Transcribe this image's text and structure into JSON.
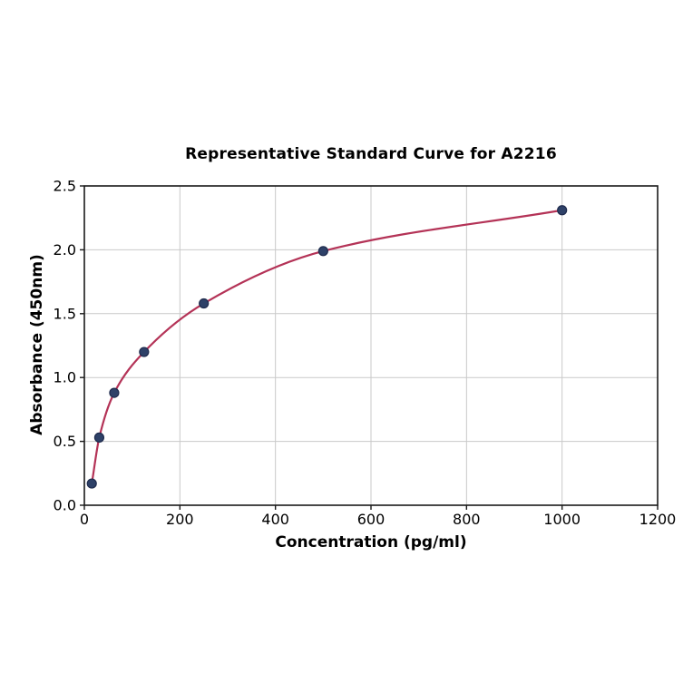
{
  "figure": {
    "background": "#ffffff"
  },
  "chart_data": {
    "type": "scatter",
    "subtype": "standard-curve-with-fit-line",
    "title": "Representative Standard Curve for A2216",
    "xlabel": "Concentration (pg/ml)",
    "ylabel": "Absorbance (450nm)",
    "xlim": [
      0,
      1200
    ],
    "ylim": [
      0.0,
      2.5
    ],
    "x_ticks": [
      0,
      200,
      400,
      600,
      800,
      1000,
      1200
    ],
    "x_tick_labels": [
      "0",
      "200",
      "400",
      "600",
      "800",
      "1000",
      "1200"
    ],
    "y_ticks": [
      0.0,
      0.5,
      1.0,
      1.5,
      2.0,
      2.5
    ],
    "y_tick_labels": [
      "0.0",
      "0.5",
      "1.0",
      "1.5",
      "2.0",
      "2.5"
    ],
    "grid": true,
    "legend": false,
    "x": [
      15.6,
      31.2,
      62.5,
      125,
      250,
      500,
      1000
    ],
    "y": [
      0.17,
      0.53,
      0.88,
      1.2,
      1.58,
      1.99,
      2.31
    ],
    "colors": {
      "curve": "#b43357",
      "marker": "#2e4168",
      "marker_edge": "#1f2b4d",
      "grid": "#c9c9c9",
      "spine": "#1a1a1a",
      "text": "#000000"
    }
  }
}
